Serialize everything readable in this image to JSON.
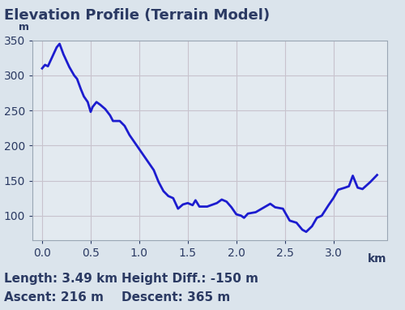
{
  "chart_data": {
    "type": "line",
    "title": "Elevation Profile (Terrain Model)",
    "x_label": "km",
    "y_label": "m",
    "annotations": [
      "Length: 3.49 km",
      "Height Diff.: -150 m",
      "Ascent: 216 m",
      "Descent: 365 m"
    ],
    "x": [
      0.0,
      0.03,
      0.06,
      0.1,
      0.15,
      0.18,
      0.22,
      0.28,
      0.33,
      0.36,
      0.4,
      0.43,
      0.47,
      0.5,
      0.52,
      0.56,
      0.6,
      0.65,
      0.7,
      0.73,
      0.8,
      0.85,
      0.9,
      1.0,
      1.1,
      1.15,
      1.2,
      1.25,
      1.3,
      1.35,
      1.4,
      1.45,
      1.5,
      1.55,
      1.58,
      1.62,
      1.7,
      1.8,
      1.85,
      1.9,
      1.95,
      2.0,
      2.05,
      2.08,
      2.12,
      2.2,
      2.3,
      2.35,
      2.4,
      2.48,
      2.55,
      2.62,
      2.68,
      2.72,
      2.78,
      2.83,
      2.88,
      2.95,
      3.0,
      3.05,
      3.12,
      3.16,
      3.2,
      3.25,
      3.3,
      3.38,
      3.45
    ],
    "values": [
      310,
      315,
      313,
      325,
      340,
      345,
      330,
      312,
      300,
      295,
      280,
      270,
      262,
      248,
      255,
      262,
      258,
      252,
      243,
      235,
      235,
      228,
      215,
      195,
      175,
      165,
      148,
      135,
      128,
      125,
      110,
      116,
      118,
      115,
      122,
      113,
      113,
      118,
      123,
      120,
      112,
      102,
      100,
      97,
      103,
      105,
      113,
      117,
      112,
      110,
      93,
      90,
      80,
      77,
      85,
      97,
      100,
      115,
      125,
      137,
      140,
      142,
      157,
      140,
      138,
      148,
      158
    ],
    "color": "#1c1ccf",
    "xlim": [
      -0.1,
      3.55
    ],
    "xticks": [
      {
        "value": 0,
        "label": "0.0"
      },
      {
        "value": 0.5,
        "label": "0.5"
      },
      {
        "value": 1,
        "label": "1.0"
      },
      {
        "value": 1.5,
        "label": "1.5"
      },
      {
        "value": 2,
        "label": "2.0"
      },
      {
        "value": 2.5,
        "label": "2.5"
      },
      {
        "value": 3,
        "label": "3.0"
      }
    ],
    "ylim": [
      65,
      350
    ],
    "yticks": [
      100,
      150,
      200,
      250,
      300,
      350
    ],
    "grid": true
  }
}
